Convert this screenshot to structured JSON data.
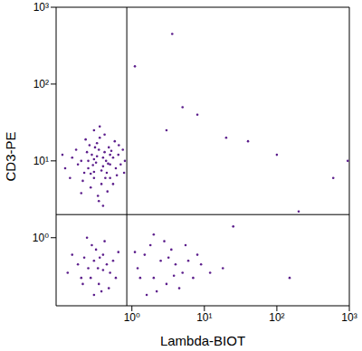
{
  "chart_data": {
    "type": "scatter",
    "xlabel": "Lambda-BIOT",
    "ylabel": "CD3-PE",
    "log": true,
    "color": "#5c1e8c",
    "marker": "dot",
    "grid": false,
    "xlim": [
      0.09,
      1000
    ],
    "ylim": [
      0.13,
      1000
    ],
    "xticks": [
      {
        "value": 1,
        "label": "10⁰"
      },
      {
        "value": 10,
        "label": "10¹"
      },
      {
        "value": 100,
        "label": "10²"
      },
      {
        "value": 1000,
        "label": "10³"
      }
    ],
    "yticks": [
      {
        "value": 1,
        "label": "10⁰"
      },
      {
        "value": 10,
        "label": "10¹"
      },
      {
        "value": 100,
        "label": "10²"
      },
      {
        "value": 1000,
        "label": "10³"
      }
    ],
    "gates": {
      "x": 0.85,
      "y": 2.0
    },
    "points": [
      [
        0.32,
        9.5
      ],
      [
        0.25,
        8
      ],
      [
        0.4,
        11
      ],
      [
        0.3,
        6
      ],
      [
        0.45,
        7
      ],
      [
        0.2,
        10
      ],
      [
        0.35,
        14
      ],
      [
        0.5,
        9
      ],
      [
        0.28,
        12
      ],
      [
        0.38,
        5
      ],
      [
        0.22,
        7
      ],
      [
        0.42,
        13
      ],
      [
        0.33,
        17
      ],
      [
        0.55,
        11
      ],
      [
        0.18,
        9
      ],
      [
        0.6,
        8
      ],
      [
        0.27,
        4.5
      ],
      [
        0.36,
        20
      ],
      [
        0.48,
        15
      ],
      [
        0.3,
        10.5
      ],
      [
        0.24,
        13
      ],
      [
        0.4,
        8.5
      ],
      [
        0.65,
        12
      ],
      [
        0.15,
        11
      ],
      [
        0.5,
        6
      ],
      [
        0.34,
        3.5
      ],
      [
        0.26,
        16
      ],
      [
        0.44,
        10
      ],
      [
        0.7,
        9
      ],
      [
        0.12,
        8
      ],
      [
        0.58,
        18
      ],
      [
        0.3,
        25
      ],
      [
        0.21,
        5.5
      ],
      [
        0.46,
        4
      ],
      [
        0.38,
        7.5
      ],
      [
        0.8,
        10
      ],
      [
        0.29,
        8.8
      ],
      [
        0.52,
        13.5
      ],
      [
        0.17,
        14
      ],
      [
        0.62,
        6.5
      ],
      [
        0.35,
        3
      ],
      [
        0.42,
        22
      ],
      [
        0.23,
        19
      ],
      [
        0.75,
        14
      ],
      [
        0.14,
        6
      ],
      [
        0.33,
        11.5
      ],
      [
        0.47,
        9.2
      ],
      [
        0.27,
        6.8
      ],
      [
        0.55,
        5
      ],
      [
        0.31,
        15
      ],
      [
        0.78,
        7
      ],
      [
        0.11,
        12
      ],
      [
        0.4,
        2.6
      ],
      [
        0.2,
        3.8
      ],
      [
        0.66,
        16
      ],
      [
        0.36,
        28
      ],
      [
        0.25,
        10
      ],
      [
        0.5,
        12
      ],
      [
        0.43,
        6
      ],
      [
        0.3,
        7.2
      ],
      [
        0.3,
        0.5
      ],
      [
        0.25,
        0.4
      ],
      [
        0.4,
        0.6
      ],
      [
        0.2,
        0.3
      ],
      [
        0.35,
        0.25
      ],
      [
        0.45,
        0.45
      ],
      [
        0.28,
        0.8
      ],
      [
        0.5,
        0.35
      ],
      [
        0.22,
        0.55
      ],
      [
        0.38,
        0.2
      ],
      [
        0.32,
        0.7
      ],
      [
        0.18,
        0.45
      ],
      [
        0.55,
        0.5
      ],
      [
        0.27,
        0.3
      ],
      [
        0.42,
        0.9
      ],
      [
        0.15,
        0.6
      ],
      [
        0.6,
        0.3
      ],
      [
        0.34,
        0.4
      ],
      [
        0.24,
        1.0
      ],
      [
        0.48,
        0.22
      ],
      [
        0.3,
        0.18
      ],
      [
        0.4,
        0.38
      ],
      [
        0.21,
        0.25
      ],
      [
        0.36,
        0.55
      ],
      [
        0.65,
        0.65
      ],
      [
        0.13,
        0.35
      ],
      [
        1.2,
        0.4
      ],
      [
        1.5,
        0.6
      ],
      [
        2,
        0.3
      ],
      [
        2.5,
        0.5
      ],
      [
        3,
        0.25
      ],
      [
        1.8,
        0.8
      ],
      [
        4,
        0.45
      ],
      [
        5,
        0.35
      ],
      [
        3.5,
        0.7
      ],
      [
        6,
        0.5
      ],
      [
        2.2,
        0.2
      ],
      [
        7,
        0.3
      ],
      [
        1.3,
        0.3
      ],
      [
        2.8,
        0.9
      ],
      [
        4.5,
        0.22
      ],
      [
        9,
        0.45
      ],
      [
        1.6,
        0.18
      ],
      [
        3.2,
        0.55
      ],
      [
        12,
        0.35
      ],
      [
        5.5,
        0.8
      ],
      [
        2,
        1.1
      ],
      [
        8,
        0.6
      ],
      [
        18,
        0.4
      ],
      [
        1.1,
        0.65
      ],
      [
        3.8,
        0.32
      ],
      [
        3,
        25
      ],
      [
        5,
        50
      ],
      [
        20,
        20
      ],
      [
        40,
        18
      ],
      [
        100,
        12
      ],
      [
        200,
        2.2
      ],
      [
        600,
        6
      ],
      [
        950,
        10
      ],
      [
        8,
        40
      ],
      [
        3.6,
        450
      ],
      [
        150,
        0.3
      ],
      [
        25,
        1.4
      ],
      [
        1.1,
        170
      ]
    ]
  }
}
